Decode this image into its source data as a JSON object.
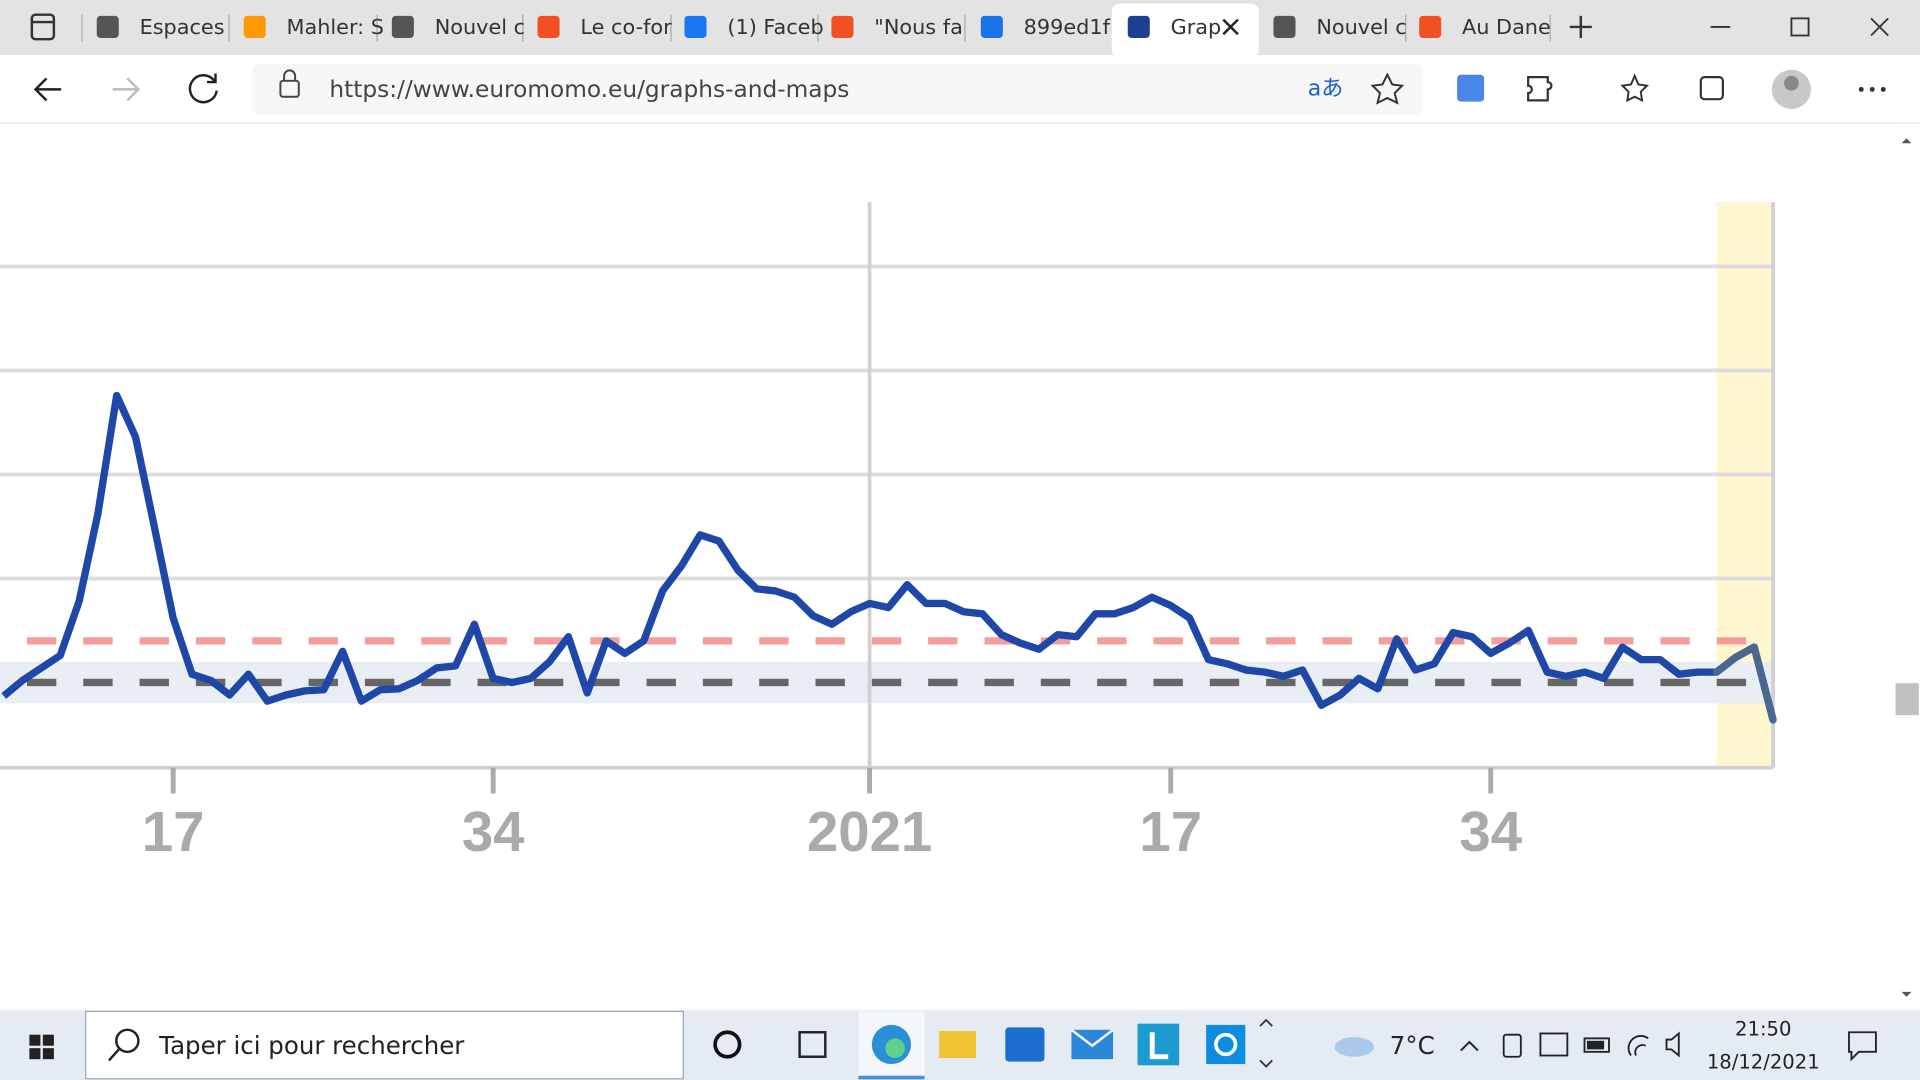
{
  "browser": {
    "tabs": [
      "Espaces",
      "Mahler: S",
      "Nouvel c",
      "Le co-for",
      "(1) Faceb",
      "\"Nous fa",
      "899ed1f",
      "Grap",
      "Nouvel c",
      "Au Dane"
    ],
    "url": "https://www.euromomo.eu/graphs-and-maps"
  },
  "chart_data": {
    "type": "line",
    "x": [
      8,
      9,
      10,
      11,
      12,
      13,
      14,
      15,
      16,
      17,
      18,
      19,
      20,
      21,
      22,
      23,
      24,
      25,
      26,
      27,
      28,
      29,
      30,
      31,
      32,
      33,
      34,
      35,
      36,
      37,
      38,
      39,
      40,
      41,
      42,
      43,
      44,
      45,
      46,
      47,
      48,
      49,
      50,
      51,
      52,
      53,
      54,
      55,
      56,
      57,
      58,
      59,
      60,
      61,
      62,
      63,
      64,
      65,
      66,
      67,
      68,
      69,
      70,
      71,
      72,
      73,
      74,
      75,
      76,
      77,
      78,
      79,
      80,
      81,
      82,
      83,
      84,
      85,
      86,
      87,
      88,
      89,
      90,
      91,
      92,
      93,
      94,
      95,
      96,
      97,
      98,
      99,
      100,
      101,
      102
    ],
    "series": [
      {
        "color": "#1e47a8",
        "values": [
          -0.65,
          0.1,
          0.7,
          1.3,
          3.9,
          8.1,
          13.8,
          11.8,
          7.5,
          3.1,
          0.4,
          0.1,
          -0.6,
          0.4,
          -0.9,
          -0.6,
          -0.4,
          -0.35,
          1.5,
          -0.9,
          -0.35,
          -0.3,
          0.1,
          0.7,
          0.8,
          2.8,
          0.2,
          0,
          0.2,
          1.0,
          2.2,
          -0.5,
          2.0,
          1.4,
          2.0,
          4.4,
          5.6,
          7.1,
          6.8,
          5.4,
          4.5,
          4.4,
          4.1,
          3.2,
          2.8,
          3.4,
          3.8,
          3.6,
          4.7,
          3.8,
          3.8,
          3.4,
          3.3,
          2.3,
          1.9,
          1.6,
          2.3,
          2.2,
          3.3,
          3.3,
          3.6,
          4.1,
          3.7,
          3.1,
          1.1,
          0.9,
          0.6,
          0.5,
          0.3,
          0.6,
          -1.1,
          -0.6,
          0.2,
          -0.3,
          2.1,
          0.6,
          0.9,
          2.4,
          2.2,
          1.4,
          1.9,
          2.5,
          0.5,
          0.3,
          0.5,
          0.2,
          1.7,
          1.1,
          1.1,
          0.4,
          0.5,
          0.5,
          1.2,
          1.7,
          -1.8
        ]
      }
    ],
    "xlim": [
      7.8,
      102
    ],
    "ylim": [
      -4.1,
      23.1
    ],
    "xticks": [
      17,
      34,
      {
        "value": 54,
        "label": "2021"
      },
      {
        "value": 70,
        "label": "17"
      },
      {
        "value": 87,
        "label": "34"
      }
    ],
    "yticks": [
      5,
      10,
      15,
      20
    ],
    "grid": true,
    "band": [
      -1,
      1
    ],
    "band_color": "#e9eef4",
    "reference_lines": [
      {
        "value": 2,
        "color": "#f59d9d"
      },
      {
        "value": 0,
        "color": "#666666"
      }
    ],
    "highlight": [
      99,
      102
    ],
    "highlight_color": "#fdf6cf",
    "highlight_line_color": "#4b6790"
  },
  "taskbar": {
    "search": "Taper ici pour rechercher",
    "weather": "7°C",
    "time": "21:50",
    "date": "18/12/2021"
  }
}
